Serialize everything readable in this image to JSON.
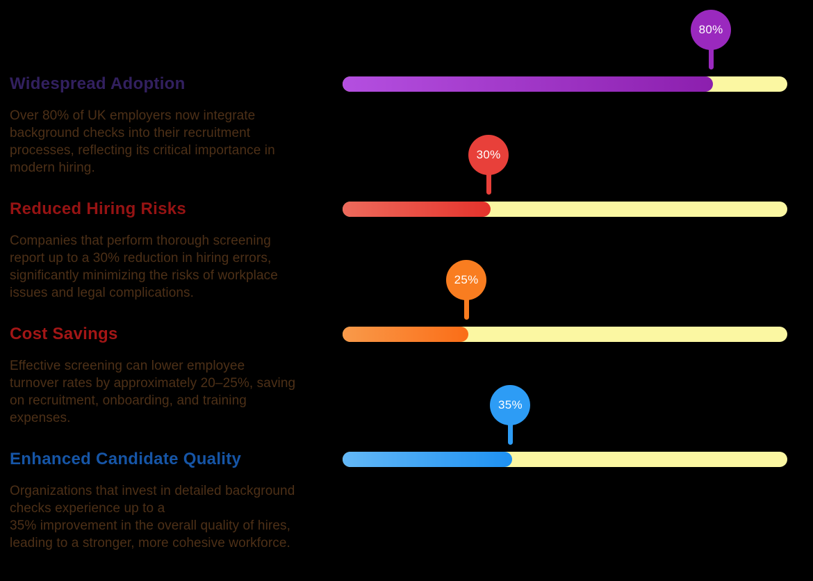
{
  "page": {
    "background": "#000000",
    "body_text_color": "#4d3017",
    "track_color": "#fbf7a2"
  },
  "sections": [
    {
      "id": "widespread-adoption",
      "title": "Widespread Adoption",
      "title_color": "#32205f",
      "description": "Over 80% of UK employers now integrate\nbackground checks into their recruitment\nprocesses, reflecting its critical importance in\nmodern hiring.",
      "value": 80,
      "value_label": "80%",
      "fill_percent": 83.3,
      "fill_gradient_start": "#b44fe0",
      "fill_gradient_end": "#8c1fae",
      "balloon_color": "#9a29be"
    },
    {
      "id": "reduced-hiring-risks",
      "title": "Reduced Hiring Risks",
      "title_color": "#961313",
      "description": "Companies that perform thorough screening\nreport up to a 30% reduction in hiring errors,\nsignificantly minimizing the risks of workplace\nissues and legal complications.",
      "value": 30,
      "value_label": "30%",
      "fill_percent": 33.3,
      "fill_gradient_start": "#ed6a5c",
      "fill_gradient_end": "#e5332c",
      "balloon_color": "#e8403a"
    },
    {
      "id": "cost-savings",
      "title": "Cost Savings",
      "title_color": "#a31616",
      "description": "Effective screening can lower employee\nturnover rates by approximately 20–25%, saving\non recruitment, onboarding, and training\nexpenses.",
      "value": 25,
      "value_label": "25%",
      "fill_percent": 28.3,
      "fill_gradient_start": "#f99a4a",
      "fill_gradient_end": "#fa6d17",
      "balloon_color": "#f97d20"
    },
    {
      "id": "enhanced-candidate-quality",
      "title": "Enhanced Candidate Quality",
      "title_color": "#1655a6",
      "description": "Organizations that invest in detailed background\nchecks experience up to a\n35% improvement in the overall quality of hires,\nleading to a stronger, more cohesive workforce.",
      "value": 35,
      "value_label": "35%",
      "fill_percent": 38.2,
      "fill_gradient_start": "#63b8f7",
      "fill_gradient_end": "#1e91f2",
      "balloon_color": "#2d9cf5"
    }
  ],
  "chart_data": {
    "type": "bar",
    "orientation": "horizontal",
    "categories": [
      "Widespread Adoption",
      "Reduced Hiring Risks",
      "Cost Savings",
      "Enhanced Candidate Quality"
    ],
    "values": [
      80,
      30,
      25,
      35
    ],
    "value_labels": [
      "80%",
      "30%",
      "25%",
      "35%"
    ],
    "unit": "%",
    "xlim": [
      0,
      100
    ],
    "grid": false,
    "legend": false,
    "bar_colors": [
      "#9a29be",
      "#e8403a",
      "#fa6d17",
      "#2d9cf5"
    ],
    "track_color": "#fbf7a2"
  }
}
